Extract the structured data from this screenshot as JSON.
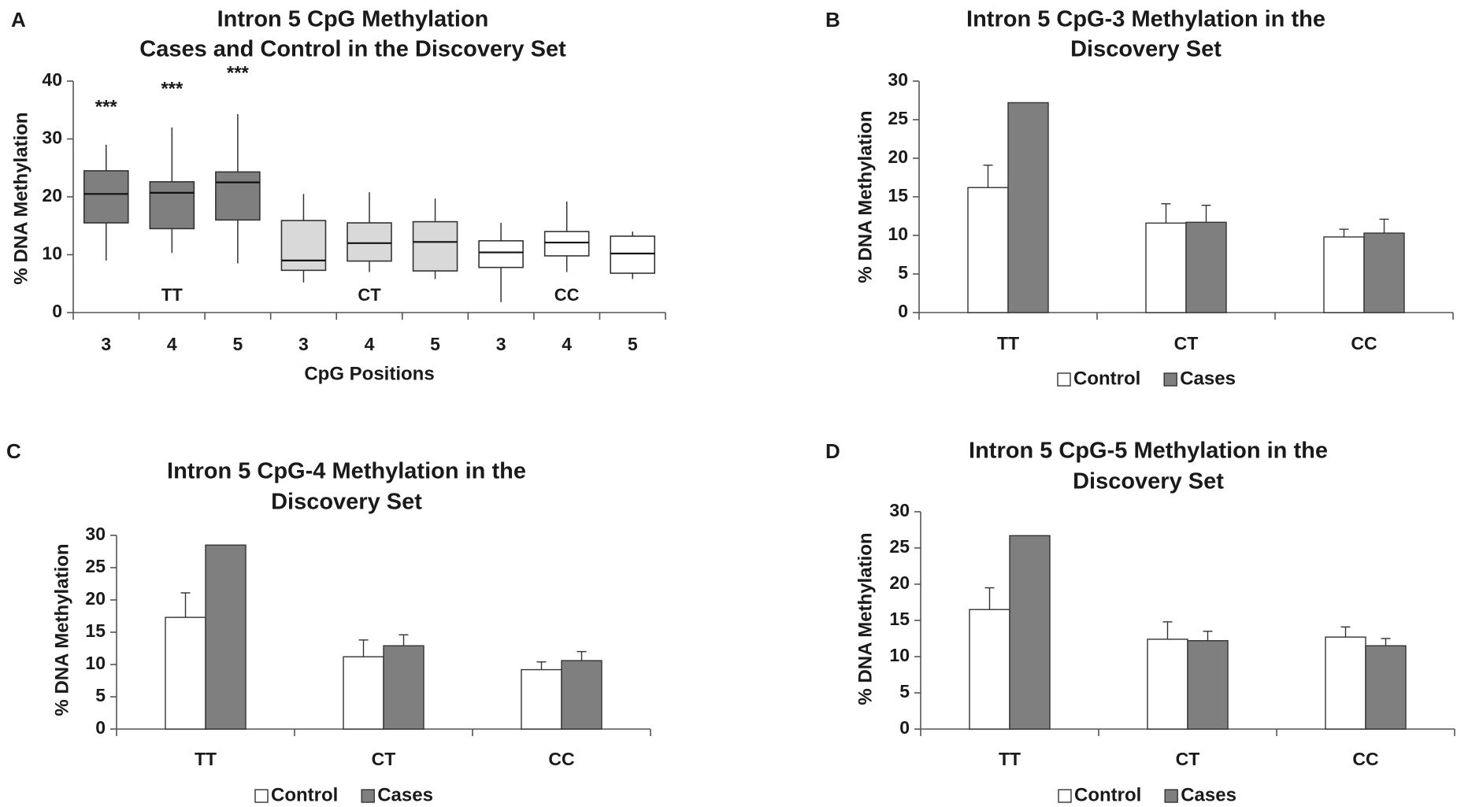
{
  "chart_data": [
    {
      "panel": "A",
      "type": "box",
      "title": [
        "Intron 5 CpG Methylation",
        "Cases and Control in the Discovery Set"
      ],
      "ylabel": "% DNA Methylation",
      "xlabel": "CpG Positions",
      "ylim": [
        0,
        40
      ],
      "yticks": [
        "0",
        "10",
        "20",
        "30",
        "40"
      ],
      "x_labels": [
        "3",
        "4",
        "5",
        "3",
        "4",
        "5",
        "3",
        "4",
        "5"
      ],
      "group_labels": [
        "TT",
        "CT",
        "CC"
      ],
      "significance": [
        "***",
        "***",
        "***"
      ],
      "colors": [
        "#7f7f7f",
        "#d9d9d9",
        "#ffffff"
      ],
      "boxes": [
        {
          "min": 9,
          "q1": 15.5,
          "median": 20.5,
          "q3": 24.5,
          "max": 29
        },
        {
          "min": 10.3,
          "q1": 14.5,
          "median": 20.7,
          "q3": 22.6,
          "max": 32
        },
        {
          "min": 8.5,
          "q1": 16,
          "median": 22.5,
          "q3": 24.3,
          "max": 34.3
        },
        {
          "min": 5.2,
          "q1": 7.3,
          "median": 9,
          "q3": 15.9,
          "max": 20.5
        },
        {
          "min": 7,
          "q1": 8.9,
          "median": 12,
          "q3": 15.5,
          "max": 20.8
        },
        {
          "min": 5.8,
          "q1": 7.2,
          "median": 12.2,
          "q3": 15.7,
          "max": 19.7
        },
        {
          "min": 1.8,
          "q1": 7.8,
          "median": 10.4,
          "q3": 12.4,
          "max": 15.5
        },
        {
          "min": 7,
          "q1": 9.8,
          "median": 12.1,
          "q3": 14,
          "max": 19.2
        },
        {
          "min": 5.8,
          "q1": 6.8,
          "median": 10.2,
          "q3": 13.2,
          "max": 14
        }
      ]
    },
    {
      "panel": "B",
      "type": "bar",
      "title": [
        "Intron 5 CpG-3 Methylation in the",
        "Discovery Set"
      ],
      "ylabel": "% DNA Methylation",
      "ylim": [
        0,
        30
      ],
      "yticks": [
        "0",
        "5",
        "10",
        "15",
        "20",
        "25",
        "30"
      ],
      "categories": [
        "TT",
        "CT",
        "CC"
      ],
      "series": [
        {
          "name": "Control",
          "color": "#ffffff",
          "values": [
            16.2,
            11.6,
            9.8
          ],
          "errors": [
            2.9,
            2.5,
            1.0
          ]
        },
        {
          "name": "Cases",
          "color": "#7f7f7f",
          "values": [
            27.2,
            11.7,
            10.3
          ],
          "errors": [
            0,
            2.2,
            1.8
          ]
        }
      ]
    },
    {
      "panel": "C",
      "type": "bar",
      "title": [
        "Intron 5 CpG-4 Methylation in the",
        "Discovery Set"
      ],
      "ylabel": "% DNA Methylation",
      "ylim": [
        0,
        30
      ],
      "yticks": [
        "0",
        "5",
        "10",
        "15",
        "20",
        "25",
        "30"
      ],
      "categories": [
        "TT",
        "CT",
        "CC"
      ],
      "series": [
        {
          "name": "Control",
          "color": "#ffffff",
          "values": [
            17.3,
            11.2,
            9.2
          ],
          "errors": [
            3.8,
            2.6,
            1.2
          ]
        },
        {
          "name": "Cases",
          "color": "#7f7f7f",
          "values": [
            28.5,
            12.9,
            10.6
          ],
          "errors": [
            0,
            1.7,
            1.4
          ]
        }
      ]
    },
    {
      "panel": "D",
      "type": "bar",
      "title": [
        "Intron 5 CpG-5 Methylation in the",
        "Discovery Set"
      ],
      "ylabel": "% DNA Methylation",
      "ylim": [
        0,
        30
      ],
      "yticks": [
        "0",
        "5",
        "10",
        "15",
        "20",
        "25",
        "30"
      ],
      "categories": [
        "TT",
        "CT",
        "CC"
      ],
      "series": [
        {
          "name": "Control",
          "color": "#ffffff",
          "values": [
            16.5,
            12.4,
            12.7
          ],
          "errors": [
            3.0,
            2.4,
            1.4
          ]
        },
        {
          "name": "Cases",
          "color": "#7f7f7f",
          "values": [
            26.7,
            12.2,
            11.5
          ],
          "errors": [
            0,
            1.3,
            1.0
          ]
        }
      ]
    }
  ]
}
